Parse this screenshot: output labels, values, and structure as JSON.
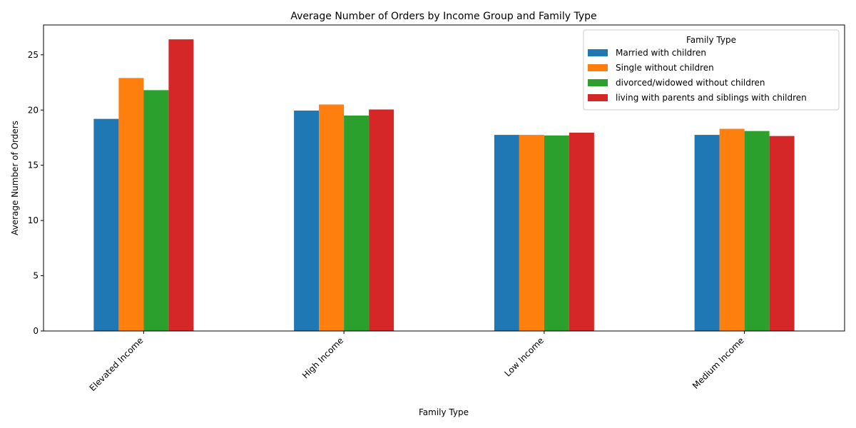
{
  "chart_data": {
    "type": "bar",
    "title": "Average Number of Orders by Income Group and Family Type",
    "xlabel": "Family Type",
    "ylabel": "Average Number of Orders",
    "ylim": [
      0,
      27.7
    ],
    "yticks": [
      0,
      5,
      10,
      15,
      20,
      25
    ],
    "categories": [
      "Elevated Income",
      "High Income",
      "Low Income",
      "Medium Income"
    ],
    "legend": {
      "title": "Family Type",
      "placement": "top-right"
    },
    "series": [
      {
        "name": "Married with children",
        "color": "#1f77b4",
        "values": [
          19.2,
          19.95,
          17.75,
          17.75
        ]
      },
      {
        "name": "Single without children",
        "color": "#ff7f0e",
        "values": [
          22.9,
          20.5,
          17.75,
          18.3
        ]
      },
      {
        "name": "divorced/widowed without children",
        "color": "#2ca02c",
        "values": [
          21.8,
          19.5,
          17.7,
          18.1
        ]
      },
      {
        "name": "living with parents and siblings with children",
        "color": "#d62728",
        "values": [
          26.4,
          20.05,
          17.95,
          17.65
        ]
      }
    ]
  }
}
